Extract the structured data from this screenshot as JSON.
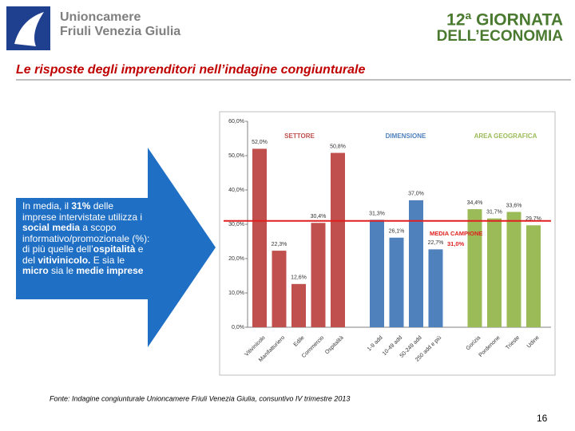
{
  "header": {
    "left_logo": [
      "Unioncamere",
      "Friuli Venezia Giulia"
    ],
    "right_logo": [
      "12ª GIORNATA",
      "DELL’ECONOMIA"
    ],
    "title": "Le risposte degli imprenditori nell’indagine congiunturale"
  },
  "callout": [
    {
      "text": "In media, il "
    },
    {
      "text": "31%",
      "bold": true
    },
    {
      "text": " delle imprese intervistate utilizza i "
    },
    {
      "text": "social media",
      "bold": true
    },
    {
      "text": " a scopo informativo/promozionale (%): di più quelle dell’"
    },
    {
      "text": "ospitalità",
      "bold": true
    },
    {
      "text": " e del "
    },
    {
      "text": "vitivinicolo.",
      "bold": true
    },
    {
      "text": " E sia le "
    },
    {
      "text": "micro",
      "bold": true
    },
    {
      "text": " sia le "
    },
    {
      "text": "medie imprese",
      "bold": true
    }
  ],
  "chart_data": {
    "type": "bar",
    "categories": [
      "Vitivinicolo",
      "Manifatturiero",
      "Edile",
      "Commercio",
      "Ospitalità",
      "1-9 add",
      "10-49 add",
      "50-249 add",
      "250 add e più",
      "Gorizia",
      "Pordenone",
      "Trieste",
      "Udine"
    ],
    "series": [
      {
        "name": "SETTORE",
        "color": "#c0504d",
        "values": [
          52.0,
          22.3,
          12.6,
          30.4,
          50.8,
          null,
          null,
          null,
          null,
          null,
          null,
          null,
          null
        ],
        "value_labels": [
          "52,0%",
          "22,3%",
          "12,6%",
          "30,4%",
          "50,8%",
          null,
          null,
          null,
          null,
          null,
          null,
          null,
          null
        ]
      },
      {
        "name": "DIMENSIONE",
        "color": "#4f81bd",
        "values": [
          null,
          null,
          null,
          null,
          null,
          31.3,
          26.1,
          37.0,
          22.7,
          null,
          null,
          null,
          null
        ],
        "value_labels": [
          null,
          null,
          null,
          null,
          null,
          "31,3%",
          "26,1%",
          "37,0%",
          "22,7%",
          null,
          null,
          null,
          null
        ]
      },
      {
        "name": "AREA GEOGRAFICA",
        "color": "#9bbb59",
        "values": [
          null,
          null,
          null,
          null,
          null,
          null,
          null,
          null,
          null,
          34.4,
          31.7,
          33.6,
          29.7
        ],
        "value_labels": [
          null,
          null,
          null,
          null,
          null,
          null,
          null,
          null,
          null,
          "34,4%",
          "31,7%",
          "33,6%",
          "29,7%"
        ]
      }
    ],
    "reference_line": {
      "label": "MEDIA CAMPIONE",
      "value": 31.0,
      "value_label": "31,0%",
      "color": "#e02020"
    },
    "ylim": [
      0,
      60
    ],
    "yticks": [
      {
        "value": 0,
        "label": "0,0%"
      },
      {
        "value": 10,
        "label": "10,0%"
      },
      {
        "value": 20,
        "label": "20,0%"
      },
      {
        "value": 30,
        "label": "30,0%"
      },
      {
        "value": 40,
        "label": "40,0%"
      },
      {
        "value": 50,
        "label": "50,0%"
      },
      {
        "value": 60,
        "label": "60,0%"
      }
    ],
    "grid": false
  },
  "source": "Fonte: Indagine congiunturale Unioncamere Friuli Venezia Giulia, consuntivo IV trimestre 2013",
  "page_number": "16"
}
